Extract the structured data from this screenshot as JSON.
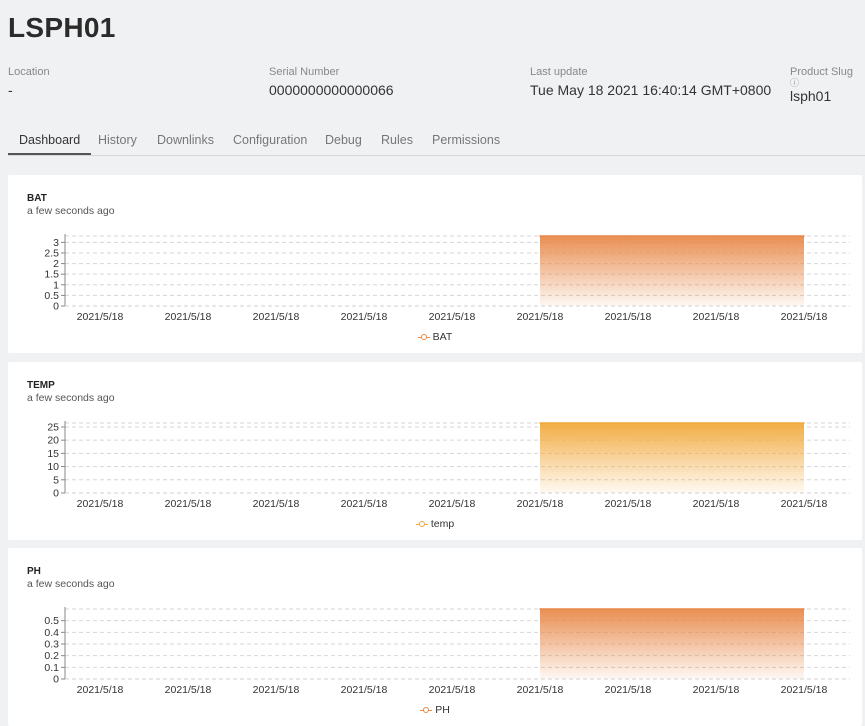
{
  "device": {
    "title": "LSPH01",
    "location": {
      "label": "Location",
      "value": "-"
    },
    "serial": {
      "label": "Serial Number",
      "value": "0000000000000066"
    },
    "last_update": {
      "label": "Last update",
      "value": "Tue May 18 2021 16:40:14 GMT+0800"
    },
    "product_slug": {
      "label": "Product Slug",
      "hint": "ⓘ",
      "value": "lsph01"
    }
  },
  "tabs": [
    "Dashboard",
    "History",
    "Downlinks",
    "Configuration",
    "Debug",
    "Rules",
    "Permissions"
  ],
  "active_tab": "Dashboard",
  "cards": [
    {
      "name": "BAT",
      "ago": "a few seconds ago",
      "legend": "BAT",
      "color": "#e8894a"
    },
    {
      "name": "TEMP",
      "ago": "a few seconds ago",
      "legend": "temp",
      "color": "#f2a93b"
    },
    {
      "name": "PH",
      "ago": "a few seconds ago",
      "legend": "PH",
      "color": "#e8894a"
    }
  ],
  "chart_data": [
    {
      "type": "area",
      "x": [
        "2021/5/18",
        "2021/5/18",
        "2021/5/18",
        "2021/5/18",
        "2021/5/18",
        "2021/5/18",
        "2021/5/18",
        "2021/5/18",
        "2021/5/18"
      ],
      "series": [
        {
          "name": "BAT",
          "values": [
            null,
            null,
            null,
            null,
            null,
            3.3,
            3.3,
            3.3,
            3.3
          ]
        }
      ],
      "y_ticks": [
        "0",
        "0.5",
        "1",
        "1.5",
        "2",
        "2.5",
        "3"
      ],
      "ylim": [
        0,
        3.3
      ],
      "grid": true,
      "legend": "bottom-center"
    },
    {
      "type": "area",
      "x": [
        "2021/5/18",
        "2021/5/18",
        "2021/5/18",
        "2021/5/18",
        "2021/5/18",
        "2021/5/18",
        "2021/5/18",
        "2021/5/18",
        "2021/5/18"
      ],
      "series": [
        {
          "name": "temp",
          "values": [
            null,
            null,
            null,
            null,
            null,
            26.5,
            26.5,
            26.5,
            26.5
          ]
        }
      ],
      "y_ticks": [
        "0",
        "5",
        "10",
        "15",
        "20",
        "25"
      ],
      "ylim": [
        0,
        26.5
      ],
      "grid": true,
      "legend": "bottom-center"
    },
    {
      "type": "area",
      "x": [
        "2021/5/18",
        "2021/5/18",
        "2021/5/18",
        "2021/5/18",
        "2021/5/18",
        "2021/5/18",
        "2021/5/18",
        "2021/5/18",
        "2021/5/18"
      ],
      "series": [
        {
          "name": "PH",
          "values": [
            null,
            null,
            null,
            null,
            null,
            0.6,
            0.6,
            0.6,
            0.6
          ]
        }
      ],
      "y_ticks": [
        "0",
        "0.1",
        "0.2",
        "0.3",
        "0.4",
        "0.5"
      ],
      "ylim": [
        0,
        0.6
      ],
      "grid": true,
      "legend": "bottom-center"
    }
  ]
}
